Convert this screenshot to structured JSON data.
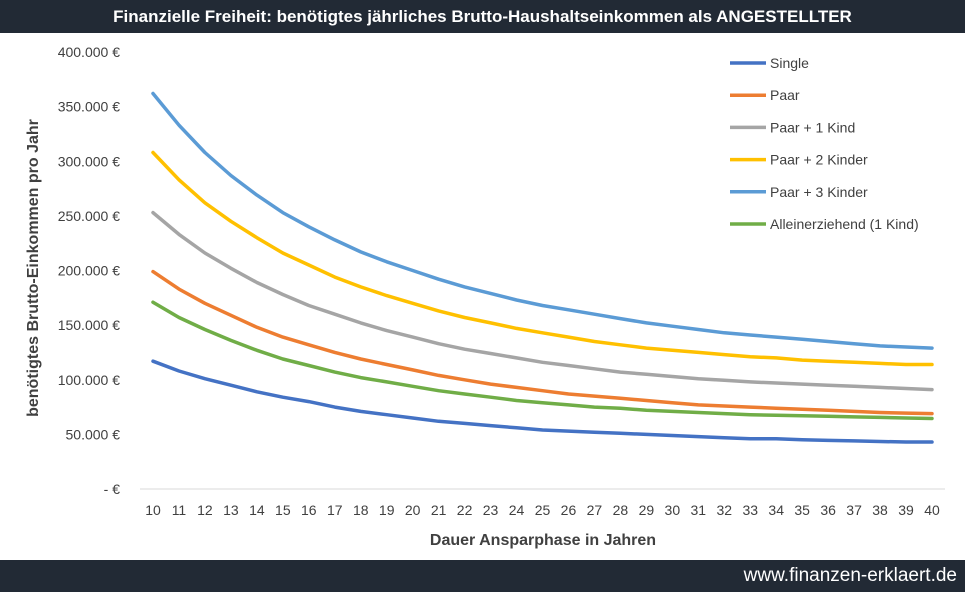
{
  "header": {
    "title": "Finanzielle Freiheit: benötigtes jährliches Brutto-Haushaltseinkommen als ANGESTELLTER"
  },
  "footer": {
    "url": "www.finanzen-erklaert.de"
  },
  "chart_data": {
    "type": "line",
    "title": "Finanzielle Freiheit: benötigtes jährliches Brutto-Haushaltseinkommen als ANGESTELLTER",
    "xlabel": "Dauer Ansparphase in Jahren",
    "ylabel": "benötigtes Brutto-Einkommen pro Jahr",
    "ylim": [
      0,
      400000
    ],
    "yticks": [
      0,
      50000,
      100000,
      150000,
      200000,
      250000,
      300000,
      350000,
      400000
    ],
    "ytick_labels": [
      "-  €",
      "50.000 €",
      "100.000 €",
      "150.000 €",
      "200.000 €",
      "250.000 €",
      "300.000 €",
      "350.000 €",
      "400.000 €"
    ],
    "grid": false,
    "legend_position": "top-right",
    "x": [
      10,
      11,
      12,
      13,
      14,
      15,
      16,
      17,
      18,
      19,
      20,
      21,
      22,
      23,
      24,
      25,
      26,
      27,
      28,
      29,
      30,
      31,
      32,
      33,
      34,
      35,
      36,
      37,
      38,
      39,
      40
    ],
    "series": [
      {
        "name": "Single",
        "color": "#4472c4",
        "values": [
          117000,
          108000,
          101000,
          95000,
          89000,
          84000,
          80000,
          75000,
          71000,
          68000,
          65000,
          62000,
          60000,
          58000,
          56000,
          54000,
          53000,
          52000,
          51000,
          50000,
          49000,
          48000,
          47000,
          46000,
          46000,
          45000,
          44500,
          44000,
          43500,
          43000,
          43000
        ]
      },
      {
        "name": "Paar",
        "color": "#ed7d31",
        "values": [
          199000,
          183000,
          170000,
          159000,
          148000,
          139000,
          132000,
          125000,
          119000,
          114000,
          109000,
          104000,
          100000,
          96000,
          93000,
          90000,
          87000,
          85000,
          83000,
          81000,
          79000,
          77000,
          76000,
          75000,
          74000,
          73000,
          72000,
          71000,
          70000,
          69500,
          69000
        ]
      },
      {
        "name": "Paar + 1 Kind",
        "color": "#a5a5a5",
        "values": [
          253000,
          233000,
          216000,
          202000,
          189000,
          178000,
          168000,
          160000,
          152000,
          145000,
          139000,
          133000,
          128000,
          124000,
          120000,
          116000,
          113000,
          110000,
          107000,
          105000,
          103000,
          101000,
          99500,
          98000,
          97000,
          96000,
          95000,
          94000,
          93000,
          92000,
          91000
        ]
      },
      {
        "name": "Paar + 2 Kinder",
        "color": "#ffc000",
        "values": [
          308000,
          283000,
          262000,
          245000,
          230000,
          216000,
          205000,
          194000,
          185000,
          177000,
          170000,
          163000,
          157000,
          152000,
          147000,
          143000,
          139000,
          135000,
          132000,
          129000,
          127000,
          125000,
          123000,
          121000,
          120000,
          118000,
          117000,
          116000,
          115000,
          114000,
          114000
        ]
      },
      {
        "name": "Paar + 3 Kinder",
        "color": "#5b9bd5",
        "values": [
          362000,
          333000,
          308000,
          287000,
          269000,
          253000,
          240000,
          228000,
          217000,
          208000,
          200000,
          192000,
          185000,
          179000,
          173000,
          168000,
          164000,
          160000,
          156000,
          152000,
          149000,
          146000,
          143000,
          141000,
          139000,
          137000,
          135000,
          133000,
          131000,
          130000,
          129000
        ]
      },
      {
        "name": "Alleinerziehend (1 Kind)",
        "color": "#70ad47",
        "values": [
          171000,
          157000,
          146000,
          136000,
          127000,
          119000,
          113000,
          107000,
          102000,
          98000,
          94000,
          90000,
          87000,
          84000,
          81000,
          79000,
          77000,
          75000,
          74000,
          72000,
          71000,
          70000,
          69000,
          68000,
          67500,
          67000,
          66500,
          66000,
          65500,
          65000,
          64500
        ]
      }
    ]
  }
}
